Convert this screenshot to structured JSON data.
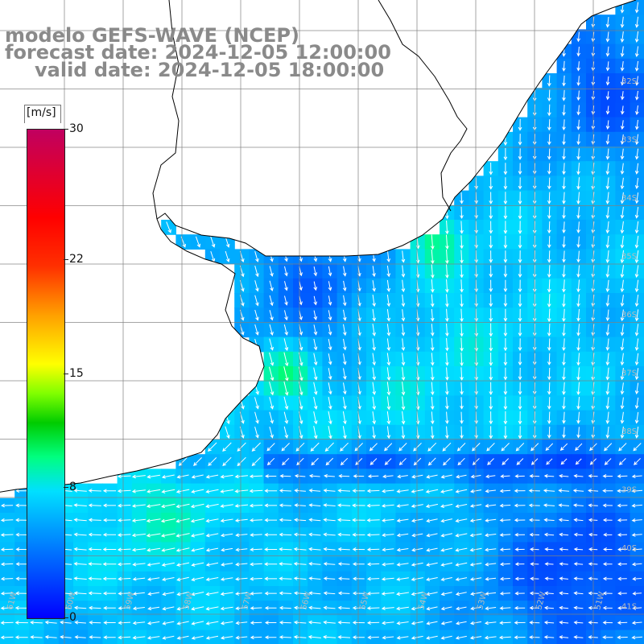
{
  "title": {
    "line1": "modelo GEFS-WAVE (NCEP)",
    "line2": "forecast date: 2024-12-05 12:00:00",
    "line3": "valid date: 2024-12-05 18:00:00"
  },
  "colorbar": {
    "unit": "[m/s]",
    "ticks": [
      {
        "label": "30",
        "value": 30
      },
      {
        "label": "22",
        "value": 22
      },
      {
        "label": "15",
        "value": 15
      },
      {
        "label": "8",
        "value": 8
      },
      {
        "label": "0",
        "value": 0
      }
    ],
    "min": 0,
    "max": 30
  },
  "lat_labels": [
    "32S",
    "33S",
    "34S",
    "35S",
    "36S",
    "37S",
    "38S",
    "39S",
    "40S",
    "41S"
  ],
  "lon_labels": [
    "61W",
    "60W",
    "59W",
    "58W",
    "57W",
    "56W",
    "55W",
    "54W",
    "53W",
    "52W",
    "51W"
  ],
  "colors": {
    "title": "#8a8a8a",
    "grid": "#808080",
    "coast": "#000000",
    "arrow": "#ffffff",
    "land": "#ffffff"
  },
  "map": {
    "variable": "wind speed and direction",
    "lon_range": [
      -61.2,
      -50.3
    ],
    "lat_range": [
      -41.3,
      -30.5
    ]
  }
}
